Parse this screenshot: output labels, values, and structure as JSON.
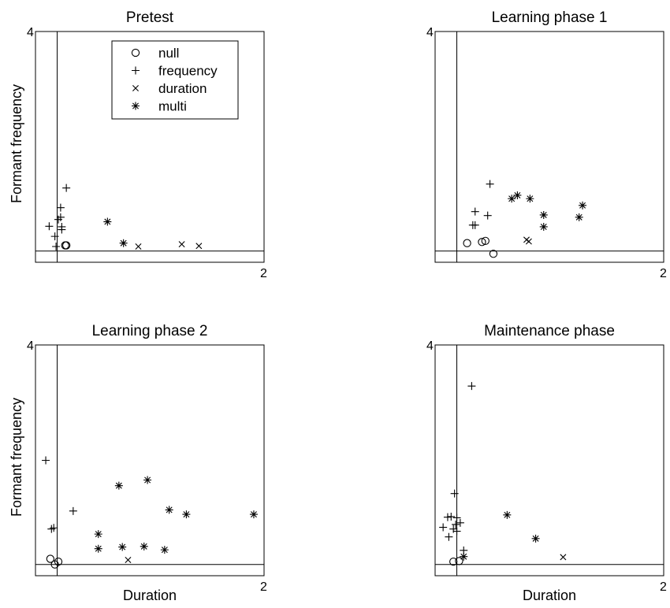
{
  "chart_data": {
    "type": "scatter",
    "xlabel": "Duration",
    "ylabel": "Formant frequency",
    "x_max_label": "2",
    "y_max_label": "4",
    "marker_legend": [
      {
        "key": "null",
        "label": "null",
        "marker": "circle"
      },
      {
        "key": "frequency",
        "label": "frequency",
        "marker": "plus"
      },
      {
        "key": "duration",
        "label": "duration",
        "marker": "x"
      },
      {
        "key": "multi",
        "label": "multi",
        "marker": "asterisk"
      }
    ],
    "panels": [
      {
        "title": "Pretest",
        "series": {
          "null": [
            [
              0.26,
              0.2
            ],
            [
              0.27,
              0.2
            ]
          ],
          "frequency": [
            [
              0.27,
              1.22
            ],
            [
              0.22,
              0.87
            ],
            [
              0.22,
              0.7
            ],
            [
              0.12,
              0.54
            ],
            [
              0.23,
              0.53
            ],
            [
              0.17,
              0.36
            ],
            [
              0.2,
              0.66
            ],
            [
              0.23,
              0.48
            ],
            [
              0.18,
              0.18
            ]
          ],
          "duration": [
            [
              0.9,
              0.18
            ],
            [
              1.28,
              0.22
            ],
            [
              1.43,
              0.19
            ]
          ],
          "multi": [
            [
              0.63,
              0.62
            ],
            [
              0.77,
              0.24
            ]
          ]
        }
      },
      {
        "title": "Learning phase 1",
        "series": {
          "null": [
            [
              0.28,
              0.24
            ],
            [
              0.41,
              0.26
            ],
            [
              0.44,
              0.28
            ],
            [
              0.51,
              0.05
            ]
          ],
          "frequency": [
            [
              0.48,
              1.29
            ],
            [
              0.35,
              0.8
            ],
            [
              0.46,
              0.73
            ],
            [
              0.33,
              0.56
            ],
            [
              0.35,
              0.56
            ]
          ],
          "duration": [
            [
              0.8,
              0.3
            ],
            [
              0.82,
              0.27
            ]
          ],
          "multi": [
            [
              0.67,
              1.03
            ],
            [
              0.72,
              1.09
            ],
            [
              0.83,
              1.03
            ],
            [
              0.95,
              0.74
            ],
            [
              0.95,
              0.53
            ],
            [
              1.29,
              0.91
            ],
            [
              1.26,
              0.7
            ]
          ]
        }
      },
      {
        "title": "Learning phase 2",
        "series": {
          "null": [
            [
              0.13,
              0.2
            ],
            [
              0.17,
              0.1
            ],
            [
              0.2,
              0.15
            ]
          ],
          "frequency": [
            [
              0.09,
              1.95
            ],
            [
              0.33,
              1.05
            ],
            [
              0.16,
              0.75
            ],
            [
              0.14,
              0.73
            ]
          ],
          "duration": [
            [
              0.81,
              0.18
            ]
          ],
          "multi": [
            [
              0.73,
              1.5
            ],
            [
              0.98,
              1.6
            ],
            [
              1.17,
              1.07
            ],
            [
              1.32,
              0.99
            ],
            [
              1.91,
              0.99
            ],
            [
              0.55,
              0.64
            ],
            [
              0.55,
              0.38
            ],
            [
              0.76,
              0.41
            ],
            [
              0.95,
              0.42
            ],
            [
              1.13,
              0.36
            ]
          ]
        }
      },
      {
        "title": "Maintenance phase",
        "series": {
          "null": [
            [
              0.16,
              0.15
            ],
            [
              0.21,
              0.16
            ]
          ],
          "frequency": [
            [
              0.32,
              3.27
            ],
            [
              0.17,
              1.36
            ],
            [
              0.14,
              0.95
            ],
            [
              0.11,
              0.94
            ],
            [
              0.19,
              0.93
            ],
            [
              0.18,
              0.81
            ],
            [
              0.22,
              0.84
            ],
            [
              0.07,
              0.76
            ],
            [
              0.16,
              0.73
            ],
            [
              0.19,
              0.69
            ],
            [
              0.12,
              0.59
            ],
            [
              0.25,
              0.35
            ]
          ],
          "duration": [
            [
              1.12,
              0.23
            ]
          ],
          "multi": [
            [
              0.63,
              0.98
            ],
            [
              0.88,
              0.56
            ],
            [
              0.25,
              0.24
            ]
          ]
        }
      }
    ]
  },
  "colors": {
    "ink": "#000000",
    "background": "#ffffff"
  }
}
